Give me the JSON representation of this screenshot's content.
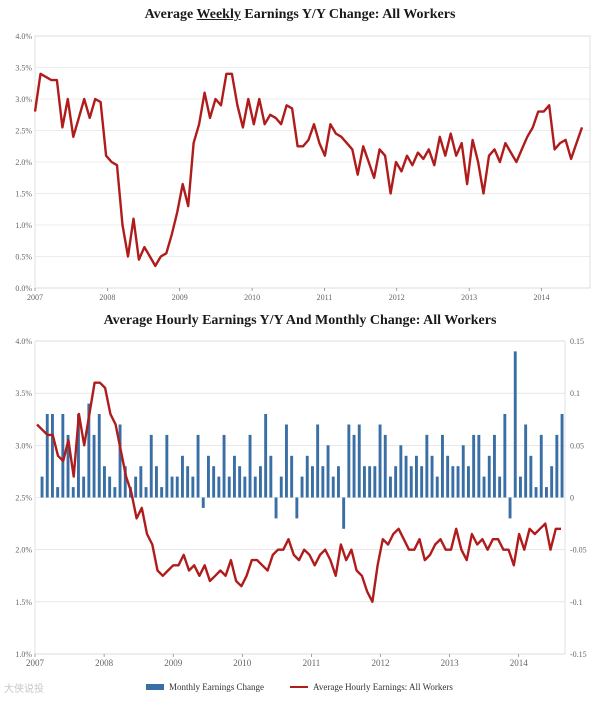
{
  "colors": {
    "line": "#b01c1c",
    "bar": "#3a6fa6",
    "grid": "#d9d9d9",
    "axis": "#666666"
  },
  "chart_data": [
    {
      "type": "line",
      "title_parts": [
        "Average ",
        "Weekly",
        " Earnings Y/Y Change: All Workers"
      ],
      "ylabel": "",
      "ylim": [
        0,
        4.0
      ],
      "y_ticks": [
        "0.0%",
        "0.5%",
        "1.0%",
        "1.5%",
        "2.0%",
        "2.5%",
        "3.0%",
        "3.5%",
        "4.0%"
      ],
      "x_ticks": [
        "2007",
        "2008",
        "2009",
        "2010",
        "2011",
        "2012",
        "2013",
        "2014"
      ],
      "x_start": 2007.0,
      "x_end": 2014.67,
      "series": [
        {
          "name": "Average Weekly Earnings Y/Y",
          "values": [
            2.8,
            3.4,
            3.35,
            3.3,
            3.3,
            2.55,
            3.0,
            2.4,
            2.7,
            3.0,
            2.7,
            3.0,
            2.95,
            2.1,
            2.0,
            1.95,
            1.0,
            0.5,
            1.1,
            0.45,
            0.65,
            0.5,
            0.35,
            0.5,
            0.55,
            0.85,
            1.2,
            1.65,
            1.3,
            2.3,
            2.6,
            3.1,
            2.7,
            3.0,
            2.9,
            3.4,
            3.4,
            2.9,
            2.55,
            3.0,
            2.6,
            3.0,
            2.6,
            2.75,
            2.7,
            2.6,
            2.9,
            2.85,
            2.25,
            2.25,
            2.35,
            2.6,
            2.3,
            2.1,
            2.6,
            2.45,
            2.4,
            2.3,
            2.2,
            1.8,
            2.25,
            2.0,
            1.75,
            2.2,
            2.1,
            1.5,
            2.0,
            1.85,
            2.1,
            1.95,
            2.15,
            2.05,
            2.2,
            1.95,
            2.4,
            2.1,
            2.45,
            2.1,
            2.3,
            1.65,
            2.35,
            2.0,
            1.5,
            2.1,
            2.2,
            2.0,
            2.3,
            2.15,
            2.0,
            2.2,
            2.4,
            2.55,
            2.8,
            2.8,
            2.9,
            2.2,
            2.3,
            2.35,
            2.05,
            2.3,
            2.55
          ]
        }
      ]
    },
    {
      "type": "bar+line",
      "title": "Average Hourly Earnings Y/Y And Monthly Change: All Workers",
      "x_ticks": [
        "2007",
        "2008",
        "2009",
        "2010",
        "2011",
        "2012",
        "2013",
        "2014"
      ],
      "x_start": 2007.0,
      "x_end": 2014.67,
      "left_axis": {
        "ylim": [
          1.0,
          4.0
        ],
        "ticks": [
          "1.0%",
          "1.5%",
          "2.0%",
          "2.5%",
          "3.0%",
          "3.5%",
          "4.0%"
        ]
      },
      "right_axis": {
        "ylim": [
          -0.15,
          0.15
        ],
        "ticks": [
          "-0.15",
          "-0.1",
          "-0.05",
          "0",
          "0.05",
          "0.1",
          "0.15"
        ]
      },
      "series": [
        {
          "name": "Monthly Earnings Change",
          "type": "bar",
          "axis": "right",
          "values": [
            0.02,
            0.08,
            0.08,
            0.01,
            0.08,
            0.06,
            0.01,
            0.08,
            0.02,
            0.09,
            0.06,
            0.08,
            0.03,
            0.02,
            0.01,
            0.07,
            0.03,
            0.01,
            0.02,
            0.03,
            0.01,
            0.06,
            0.03,
            0.01,
            0.06,
            0.02,
            0.02,
            0.04,
            0.03,
            0.02,
            0.06,
            -0.01,
            0.04,
            0.03,
            0.02,
            0.06,
            0.02,
            0.04,
            0.03,
            0.02,
            0.06,
            0.02,
            0.03,
            0.08,
            0.04,
            -0.02,
            0.02,
            0.07,
            0.04,
            -0.02,
            0.02,
            0.04,
            0.03,
            0.07,
            0.03,
            0.05,
            0.02,
            0.03,
            -0.03,
            0.07,
            0.06,
            0.07,
            0.03,
            0.03,
            0.03,
            0.07,
            0.06,
            0.02,
            0.03,
            0.05,
            0.04,
            0.03,
            0.04,
            0.03,
            0.06,
            0.04,
            0.02,
            0.06,
            0.04,
            0.03,
            0.03,
            0.05,
            0.03,
            0.06,
            0.06,
            0.02,
            0.04,
            0.06,
            0.02,
            0.08,
            -0.02,
            0.14,
            0.02,
            0.07,
            0.04,
            0.01,
            0.06,
            0.01,
            0.03,
            0.06,
            0.08
          ]
        },
        {
          "name": "Average Hourly Earnings: All Workers",
          "type": "line",
          "axis": "left",
          "values": [
            3.2,
            3.15,
            3.1,
            3.1,
            2.9,
            2.85,
            3.05,
            2.7,
            3.3,
            3.0,
            3.3,
            3.6,
            3.6,
            3.55,
            3.3,
            3.2,
            2.95,
            2.7,
            2.55,
            2.3,
            2.4,
            2.15,
            2.05,
            1.8,
            1.75,
            1.8,
            1.85,
            1.85,
            1.95,
            1.8,
            1.85,
            1.75,
            1.85,
            1.7,
            1.75,
            1.8,
            1.75,
            1.9,
            1.7,
            1.65,
            1.75,
            1.9,
            1.9,
            1.85,
            1.8,
            1.95,
            2.0,
            2.0,
            2.1,
            1.95,
            1.9,
            2.0,
            1.95,
            1.85,
            1.95,
            2.0,
            1.9,
            1.75,
            2.05,
            1.9,
            2.0,
            1.8,
            1.75,
            1.6,
            1.5,
            1.85,
            2.1,
            2.05,
            2.15,
            2.2,
            2.1,
            2.0,
            2.0,
            2.1,
            1.9,
            1.95,
            2.05,
            2.1,
            2.0,
            2.0,
            2.2,
            2.0,
            1.9,
            2.15,
            2.05,
            2.1,
            2.0,
            2.1,
            2.1,
            2.0,
            2.0,
            1.85,
            2.15,
            2.0,
            2.2,
            2.15,
            2.2,
            2.25,
            2.0,
            2.2,
            2.2
          ]
        }
      ]
    }
  ],
  "legend": {
    "bar_label": "Monthly Earnings Change",
    "line_label": "Average Hourly Earnings: All Workers"
  },
  "watermark": "大侠说投"
}
